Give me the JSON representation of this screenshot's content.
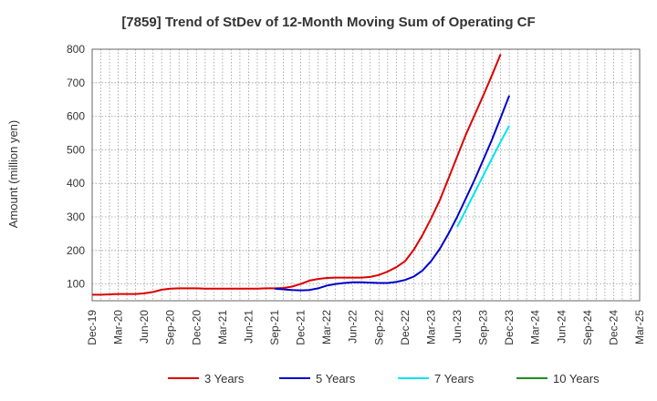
{
  "chart_data": {
    "type": "line",
    "title": "[7859]  Trend of StDev of 12-Month Moving Sum of Operating CF",
    "ylabel": "Amount (million yen)",
    "xlabel": "",
    "ylim": [
      50,
      800
    ],
    "yticks": [
      100,
      200,
      300,
      400,
      500,
      600,
      700,
      800
    ],
    "x_labels": [
      "Dec-19",
      "Mar-20",
      "Jun-20",
      "Sep-20",
      "Dec-20",
      "Mar-21",
      "Jun-21",
      "Sep-21",
      "Dec-21",
      "Mar-22",
      "Jun-22",
      "Sep-22",
      "Dec-22",
      "Mar-23",
      "Jun-23",
      "Sep-23",
      "Dec-23",
      "Mar-24",
      "Jun-24",
      "Sep-24",
      "Dec-24",
      "Mar-25"
    ],
    "grid": true,
    "legend_position": "bottom",
    "series": [
      {
        "name": "3 Years",
        "color": "#dd0000",
        "values": [
          68,
          68,
          69,
          70,
          70,
          70,
          72,
          76,
          83,
          86,
          87,
          87,
          87,
          86,
          86,
          86,
          86,
          86,
          86,
          86,
          87,
          87,
          88,
          92,
          100,
          110,
          115,
          118,
          119,
          119,
          119,
          119,
          121,
          127,
          137,
          150,
          168,
          202,
          245,
          295,
          350,
          415,
          480,
          545,
          603,
          662,
          722,
          785
        ]
      },
      {
        "name": "5 Years",
        "color": "#0000cc",
        "values": [
          null,
          null,
          null,
          null,
          null,
          null,
          null,
          null,
          null,
          null,
          null,
          null,
          null,
          null,
          null,
          null,
          null,
          null,
          null,
          null,
          null,
          86,
          84,
          82,
          81,
          82,
          87,
          95,
          100,
          103,
          105,
          105,
          104,
          103,
          103,
          106,
          112,
          122,
          140,
          168,
          205,
          250,
          300,
          355,
          410,
          470,
          530,
          595,
          662
        ]
      },
      {
        "name": "7 Years",
        "color": "#00e5ee",
        "values": [
          null,
          null,
          null,
          null,
          null,
          null,
          null,
          null,
          null,
          null,
          null,
          null,
          null,
          null,
          null,
          null,
          null,
          null,
          null,
          null,
          null,
          null,
          null,
          null,
          null,
          null,
          null,
          null,
          null,
          null,
          null,
          null,
          null,
          null,
          null,
          null,
          null,
          null,
          null,
          null,
          null,
          null,
          null,
          null,
          null,
          null,
          null,
          null,
          null,
          null,
          null,
          null,
          null,
          null,
          null,
          null,
          null,
          null,
          null,
          null,
          null,
          null,
          null,
          null,
          null,
          null,
          null,
          null,
          null,
          null,
          null,
          null,
          null,
          null,
          null,
          null,
          null,
          null,
          null,
          null,
          null,
          null,
          null,
          null,
          null,
          null,
          null,
          null,
          null,
          null,
          null,
          null,
          null,
          null,
          null,
          null,
          null,
          null,
          null,
          null,
          null,
          null
        ]
      },
      {
        "name": "10 Years",
        "color": "#228b22",
        "values": []
      }
    ]
  }
}
